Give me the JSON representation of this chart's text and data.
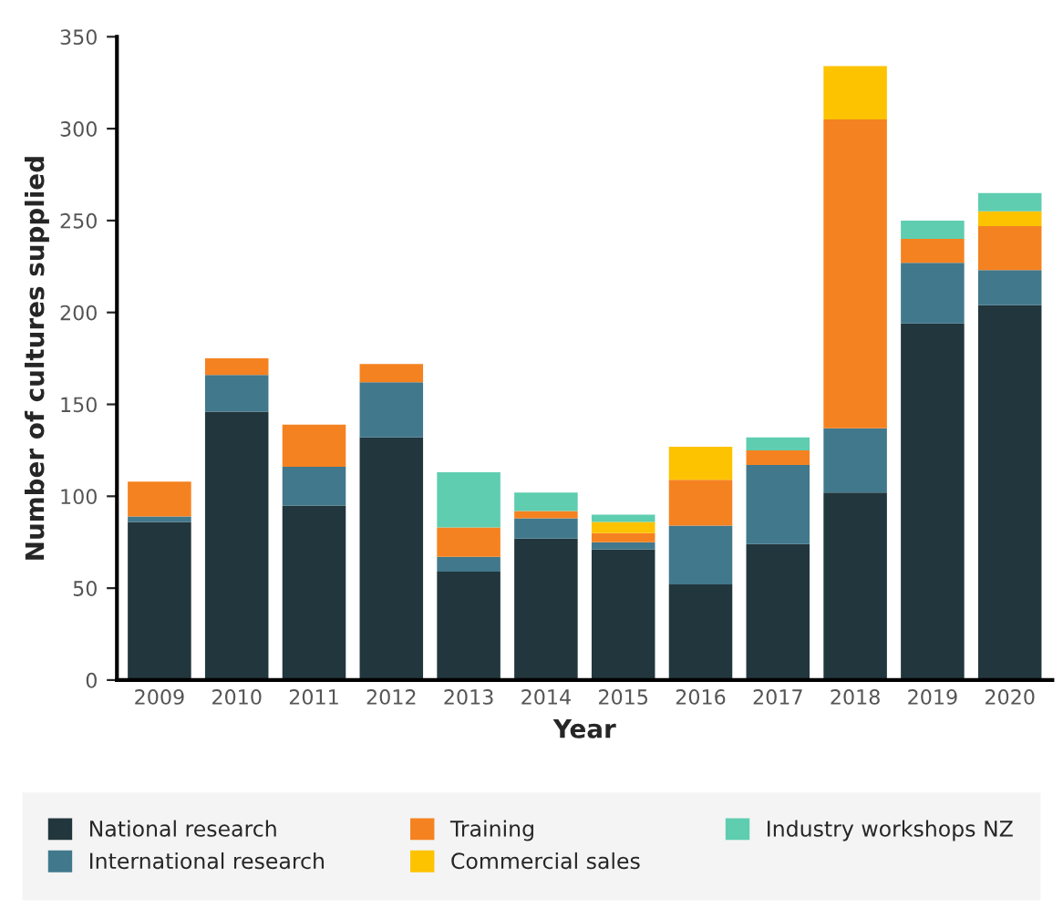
{
  "chart_data": {
    "type": "bar",
    "stacked": true,
    "xlabel": "Year",
    "ylabel": "Number of cultures supplied",
    "categories": [
      "2009",
      "2010",
      "2011",
      "2012",
      "2013",
      "2014",
      "2015",
      "2016",
      "2017",
      "2018",
      "2019",
      "2020"
    ],
    "series": [
      {
        "name": "National research",
        "color": "#22363d",
        "values": [
          86,
          146,
          95,
          132,
          59,
          77,
          71,
          52,
          74,
          102,
          194,
          204
        ]
      },
      {
        "name": "International research",
        "color": "#41788c",
        "values": [
          3,
          20,
          21,
          30,
          8,
          11,
          4,
          32,
          43,
          35,
          33,
          19
        ]
      },
      {
        "name": "Training",
        "color": "#f58220",
        "values": [
          19,
          9,
          23,
          10,
          16,
          4,
          5,
          25,
          8,
          168,
          13,
          24
        ]
      },
      {
        "name": "Commercial sales",
        "color": "#fdc300",
        "values": [
          null,
          null,
          null,
          null,
          null,
          null,
          6,
          18,
          null,
          29,
          null,
          8
        ]
      },
      {
        "name": "Industry workshops NZ",
        "color": "#5ecdb0",
        "values": [
          null,
          null,
          null,
          null,
          30,
          10,
          4,
          null,
          7,
          null,
          10,
          10
        ]
      }
    ],
    "ylim": [
      0,
      350
    ],
    "yticks": [
      0,
      50,
      100,
      150,
      200,
      250,
      300,
      350
    ],
    "grid": false,
    "legend": "bottom"
  }
}
